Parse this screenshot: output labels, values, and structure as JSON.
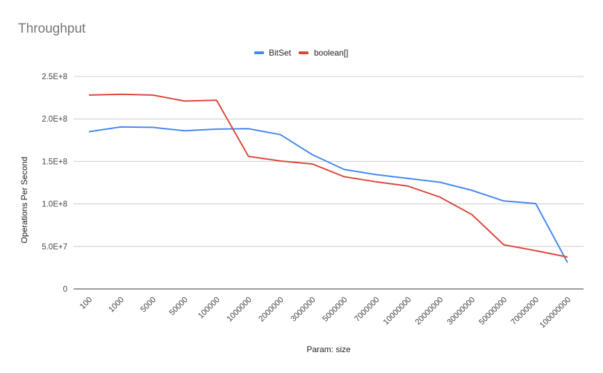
{
  "chart_data": {
    "type": "line",
    "title": "Throughput",
    "xlabel": "Param: size",
    "ylabel": "Operations Per Second",
    "categories": [
      "100",
      "1000",
      "5000",
      "50000",
      "100000",
      "1000000",
      "2000000",
      "3000000",
      "5000000",
      "7000000",
      "10000000",
      "20000000",
      "30000000",
      "50000000",
      "70000000",
      "100000000"
    ],
    "series": [
      {
        "name": "BitSet",
        "color": "#4285f4",
        "values": [
          185000000,
          190500000,
          190000000,
          186000000,
          188000000,
          188500000,
          181500000,
          158000000,
          140500000,
          134500000,
          130000000,
          125500000,
          116000000,
          103500000,
          100500000,
          31000000
        ]
      },
      {
        "name": "boolean[]",
        "color": "#db4437",
        "values": [
          228000000,
          229000000,
          228000000,
          221000000,
          222000000,
          156000000,
          150500000,
          147000000,
          132000000,
          126000000,
          121000000,
          108000000,
          87500000,
          52000000,
          45000000,
          37500000
        ]
      }
    ],
    "ylim": [
      0,
      250000000
    ],
    "yticks": [
      {
        "value": 0,
        "label": "0"
      },
      {
        "value": 50000000,
        "label": "5.0E+7"
      },
      {
        "value": 100000000,
        "label": "1.0E+8"
      },
      {
        "value": 150000000,
        "label": "1.5E+8"
      },
      {
        "value": 200000000,
        "label": "2.0E+8"
      },
      {
        "value": 250000000,
        "label": "2.5E+8"
      }
    ],
    "grid": true,
    "legend_position": "top-center",
    "gridline_color": "#cccccc",
    "baseline_color": "#333333"
  }
}
